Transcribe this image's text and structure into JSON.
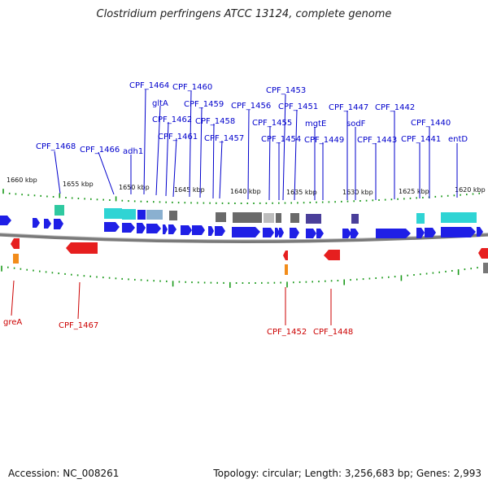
{
  "title": "Clostridium perfringens ATCC 13124, complete genome",
  "footer": {
    "accession": "Accession: NC_008261",
    "topology": "Topology: circular; Length: 3,256,683 bp; Genes: 2,993"
  },
  "colors": {
    "forward_gene": "#1f1fe6",
    "reverse_gene": "#e61f1f",
    "tick_green": "#1a9a1a",
    "backbone": "#777777",
    "label_blue": "#0000cc",
    "label_red": "#cc0000",
    "cog_cyan": "#2fd4d4",
    "cog_gray": "#777777",
    "cog_purple": "#4a3f9a",
    "cog_orange": "#f28c1a"
  },
  "scale_labels": [
    "1660 kbp",
    "1655 kbp",
    "1650 kbp",
    "1645 kbp",
    "1640 kbp",
    "1635 kbp",
    "1630 kbp",
    "1625 kbp",
    "1620 kbp"
  ],
  "forward_labels": [
    "CPF_1468",
    "CPF_1466",
    "adh1",
    "CPF_1464",
    "gltA",
    "CPF_1462",
    "CPF_1461",
    "CPF_1460",
    "CPF_1459",
    "CPF_1458",
    "CPF_1457",
    "CPF_1456",
    "CPF_1455",
    "CPF_1454",
    "CPF_1453",
    "CPF_1451",
    "mgtE",
    "CPF_1449",
    "CPF_1447",
    "sodF",
    "CPF_1443",
    "CPF_1442",
    "CPF_1441",
    "CPF_1440",
    "entD"
  ],
  "reverse_labels": [
    "greA",
    "CPF_1467",
    "CPF_1452",
    "CPF_1448"
  ]
}
